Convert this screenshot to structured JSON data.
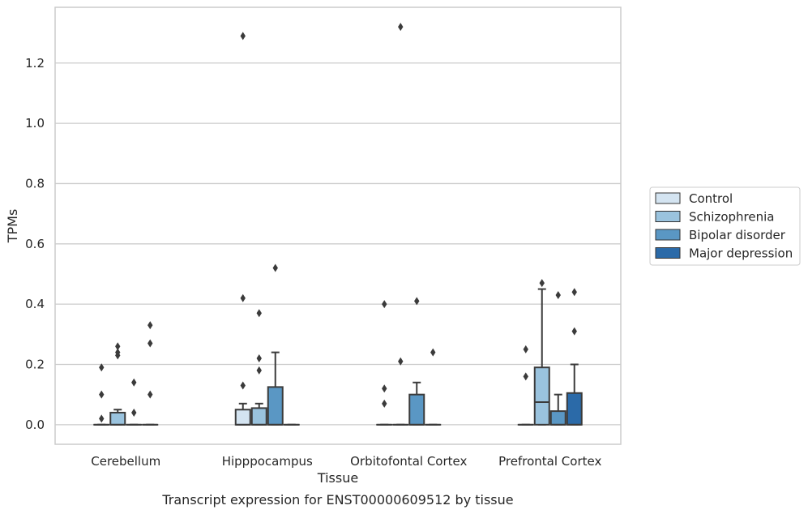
{
  "chart_data": {
    "type": "box",
    "xlabel": "Tissue",
    "ylabel": "TPMs",
    "caption": "Transcript expression for ENST00000609512 by tissue",
    "ylim": [
      -0.065,
      1.385
    ],
    "yticks": [
      0.0,
      0.2,
      0.4,
      0.6,
      0.8,
      1.0,
      1.2
    ],
    "ytick_labels": [
      "0.0",
      "0.2",
      "0.4",
      "0.6",
      "0.8",
      "1.0",
      "1.2"
    ],
    "grid": "horizontal",
    "legend_position": "right",
    "categories": [
      "Cerebellum",
      "Hipppocampus",
      "Orbitofontal Cortex",
      "Prefrontal Cortex"
    ],
    "series": [
      {
        "name": "Control",
        "color": "#d4e4f1",
        "boxes": [
          {
            "q1": 0,
            "median": 0,
            "q3": 0,
            "whislo": 0,
            "whishi": 0,
            "fliers": [
              0.02,
              0.1,
              0.19
            ]
          },
          {
            "q1": 0,
            "median": 0,
            "q3": 0.05,
            "whislo": 0,
            "whishi": 0.07,
            "fliers": [
              0.13,
              0.42,
              1.29
            ]
          },
          {
            "q1": 0,
            "median": 0,
            "q3": 0,
            "whislo": 0,
            "whishi": 0,
            "fliers": [
              0.07,
              0.12,
              0.4
            ]
          },
          {
            "q1": 0,
            "median": 0,
            "q3": 0,
            "whislo": 0,
            "whishi": 0,
            "fliers": [
              0.16,
              0.25
            ]
          }
        ]
      },
      {
        "name": "Schizophrenia",
        "color": "#9ac3de",
        "boxes": [
          {
            "q1": 0,
            "median": 0,
            "q3": 0.04,
            "whislo": 0,
            "whishi": 0.05,
            "fliers": [
              0.23,
              0.24,
              0.26
            ]
          },
          {
            "q1": 0,
            "median": 0,
            "q3": 0.055,
            "whislo": 0,
            "whishi": 0.07,
            "fliers": [
              0.18,
              0.22,
              0.37
            ]
          },
          {
            "q1": 0,
            "median": 0,
            "q3": 0,
            "whislo": 0,
            "whishi": 0,
            "fliers": [
              0.21,
              1.32
            ]
          },
          {
            "q1": 0,
            "median": 0.075,
            "q3": 0.19,
            "whislo": 0,
            "whishi": 0.45,
            "fliers": [
              0.47
            ]
          }
        ]
      },
      {
        "name": "Bipolar disorder",
        "color": "#5a97c4",
        "boxes": [
          {
            "q1": 0,
            "median": 0,
            "q3": 0,
            "whislo": 0,
            "whishi": 0,
            "fliers": [
              0.04,
              0.14
            ]
          },
          {
            "q1": 0,
            "median": 0,
            "q3": 0.125,
            "whislo": 0,
            "whishi": 0.24,
            "fliers": [
              0.52
            ]
          },
          {
            "q1": 0,
            "median": 0,
            "q3": 0.1,
            "whislo": 0,
            "whishi": 0.14,
            "fliers": [
              0.41
            ]
          },
          {
            "q1": 0,
            "median": 0,
            "q3": 0.045,
            "whislo": 0,
            "whishi": 0.1,
            "fliers": [
              0.43
            ]
          }
        ]
      },
      {
        "name": "Major depression",
        "color": "#2b6aa8",
        "boxes": [
          {
            "q1": 0,
            "median": 0,
            "q3": 0,
            "whislo": 0,
            "whishi": 0,
            "fliers": [
              0.1,
              0.27,
              0.33
            ]
          },
          {
            "q1": 0,
            "median": 0,
            "q3": 0,
            "whislo": 0,
            "whishi": 0,
            "fliers": []
          },
          {
            "q1": 0,
            "median": 0,
            "q3": 0,
            "whislo": 0,
            "whishi": 0,
            "fliers": [
              0.24
            ]
          },
          {
            "q1": 0,
            "median": 0,
            "q3": 0.105,
            "whislo": 0,
            "whishi": 0.2,
            "fliers": [
              0.31,
              0.44
            ]
          }
        ]
      }
    ]
  }
}
